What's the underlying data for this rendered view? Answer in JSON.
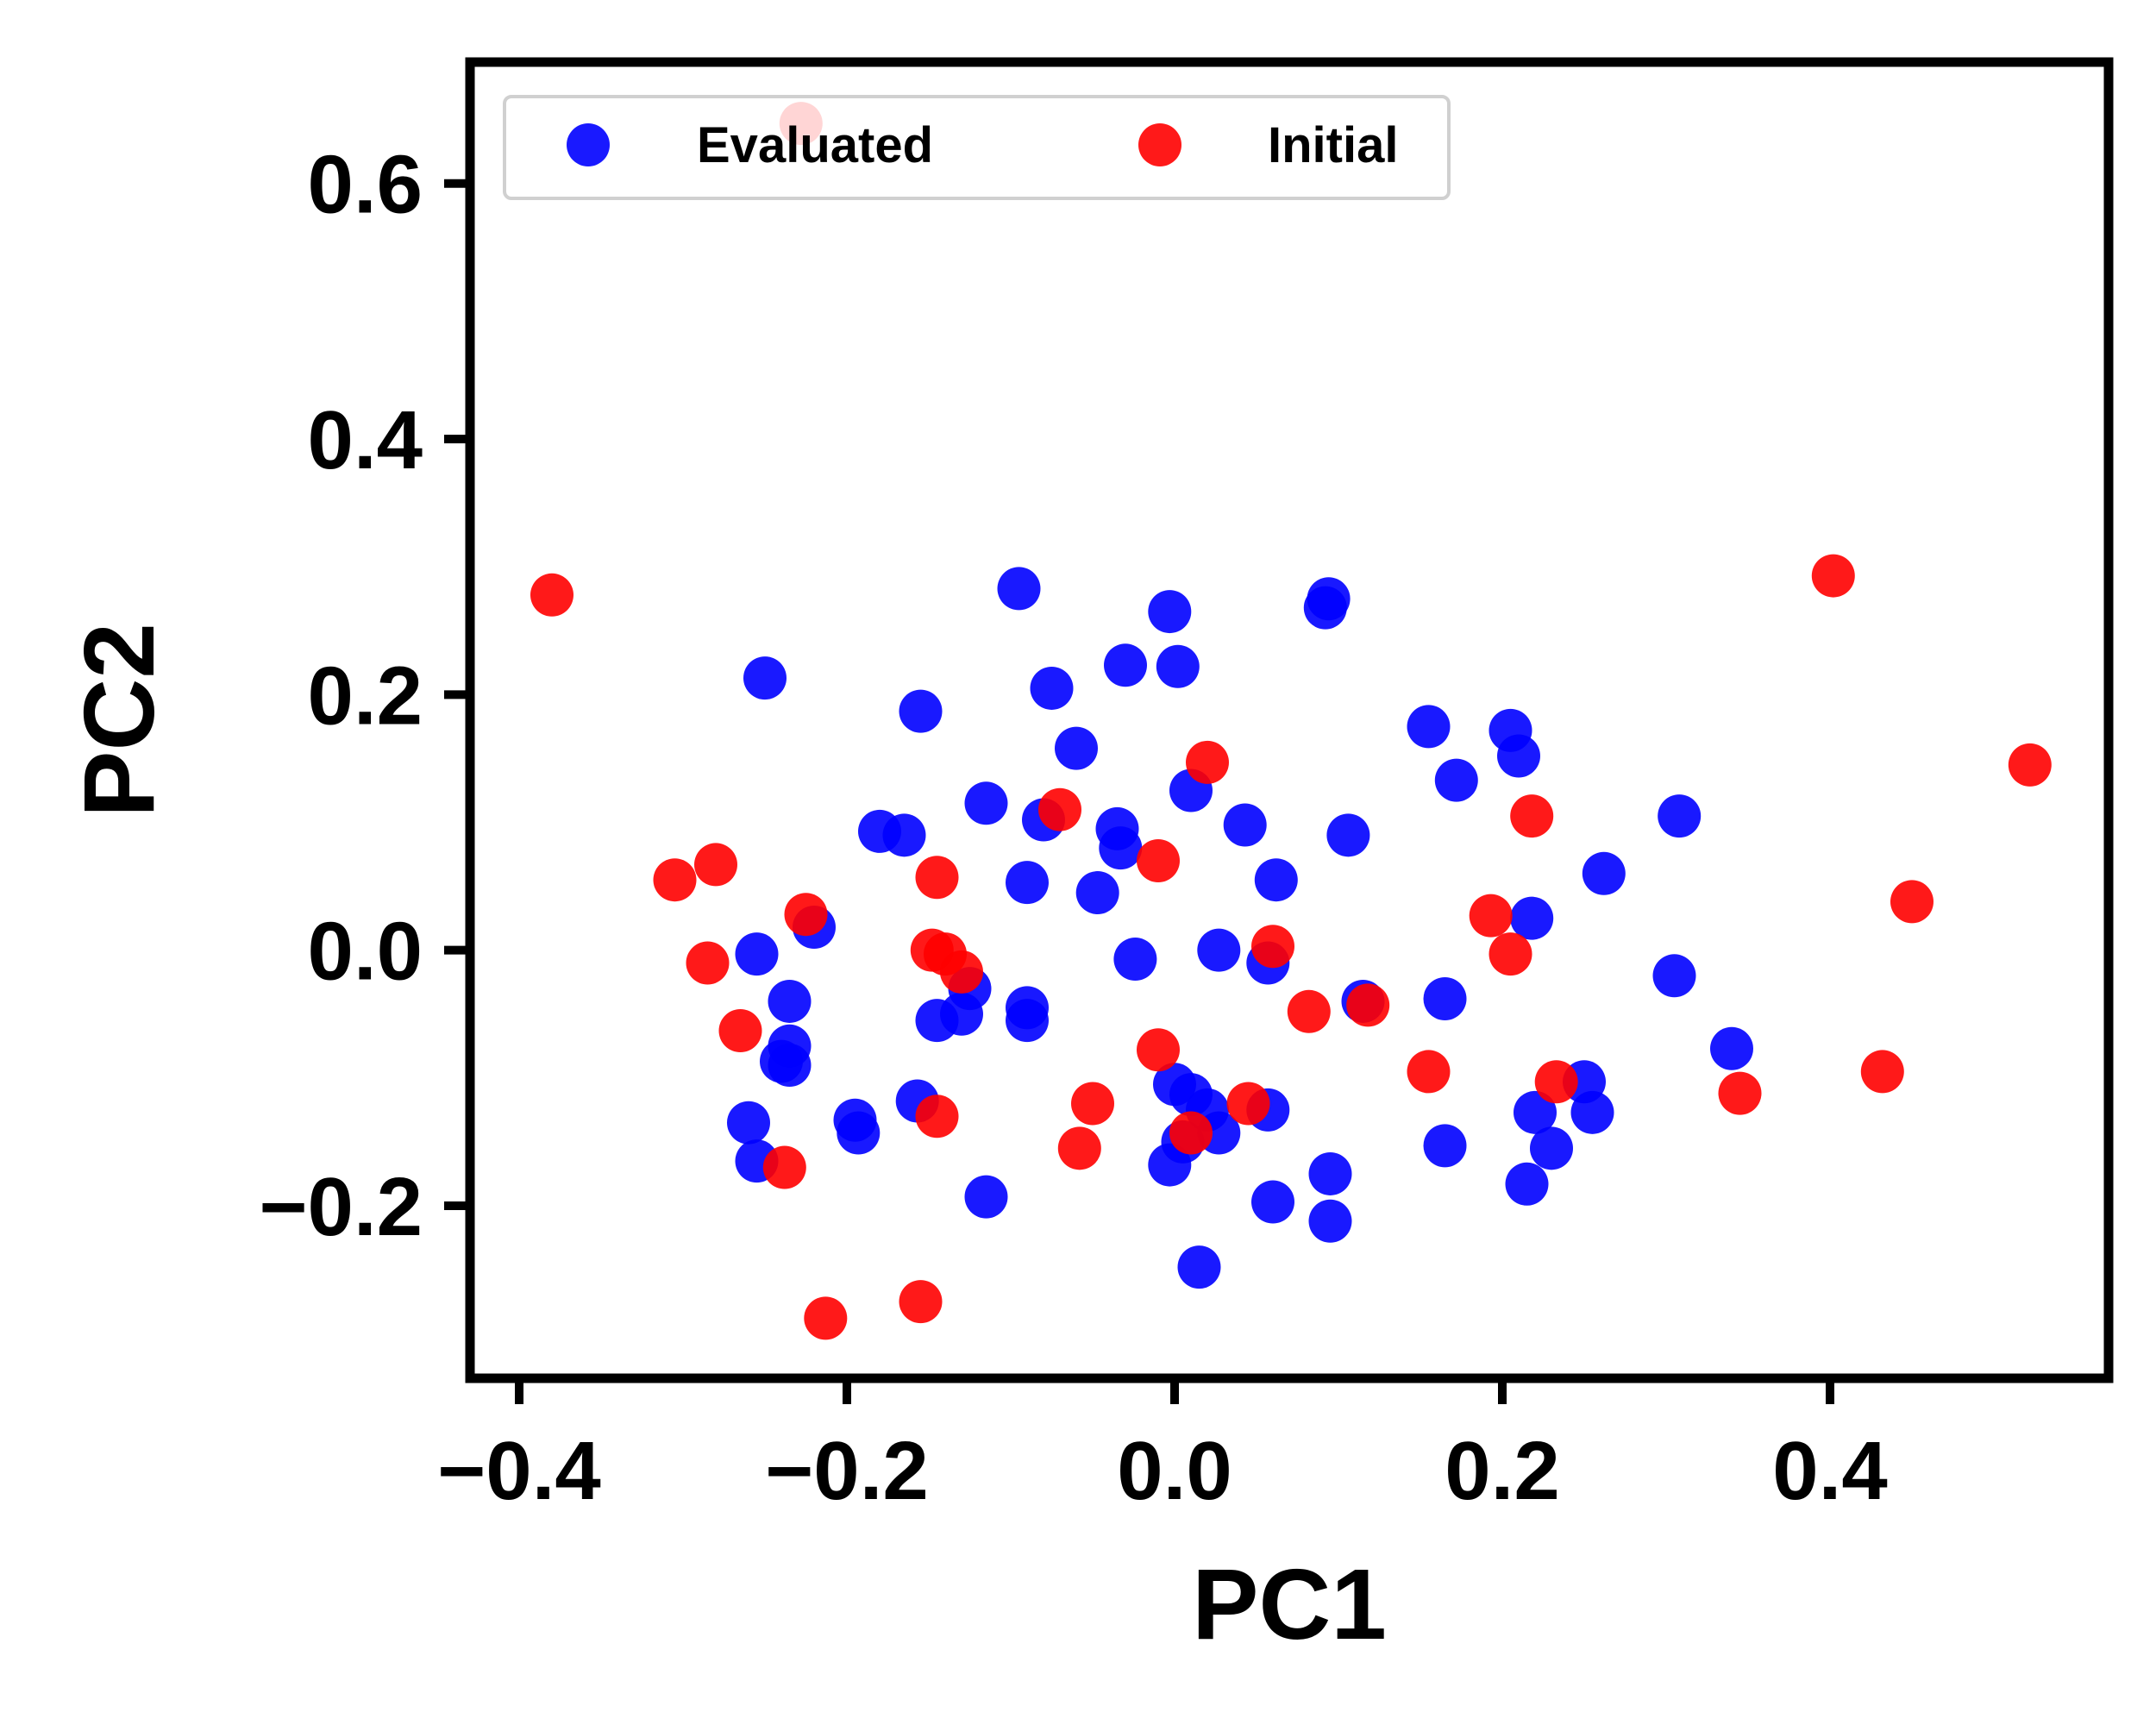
{
  "chart_data": {
    "type": "scatter",
    "title": "",
    "xlabel": "PC1",
    "ylabel": "PC2",
    "xlim": [
      -0.43,
      0.57
    ],
    "ylim": [
      -0.335,
      0.695
    ],
    "xticks": [
      -0.4,
      -0.2,
      0.0,
      0.2,
      0.4
    ],
    "yticks": [
      -0.2,
      0.0,
      0.2,
      0.4,
      0.6
    ],
    "xtick_labels": [
      "−0.4",
      "−0.2",
      "0.0",
      "0.2",
      "0.4"
    ],
    "ytick_labels": [
      "−0.2",
      "0.0",
      "0.2",
      "0.4",
      "0.6"
    ],
    "grid": false,
    "legend": {
      "placement": "top-left",
      "columns": 2
    },
    "series": [
      {
        "name": "Evaluated",
        "color": "#0000ff",
        "points": [
          [
            -0.25,
            0.213
          ],
          [
            -0.155,
            0.187
          ],
          [
            -0.095,
            0.283
          ],
          [
            -0.075,
            0.205
          ],
          [
            -0.06,
            0.158
          ],
          [
            -0.03,
            0.223
          ],
          [
            -0.003,
            0.265
          ],
          [
            0.002,
            0.222
          ],
          [
            0.092,
            0.268
          ],
          [
            0.094,
            0.275
          ],
          [
            0.155,
            0.175
          ],
          [
            0.172,
            0.133
          ],
          [
            0.205,
            0.172
          ],
          [
            0.21,
            0.152
          ],
          [
            0.308,
            0.105
          ],
          [
            -0.18,
            0.093
          ],
          [
            -0.165,
            0.09
          ],
          [
            -0.115,
            0.115
          ],
          [
            -0.08,
            0.102
          ],
          [
            -0.035,
            0.095
          ],
          [
            -0.033,
            0.08
          ],
          [
            0.01,
            0.125
          ],
          [
            0.043,
            0.098
          ],
          [
            0.062,
            0.055
          ],
          [
            0.106,
            0.09
          ],
          [
            0.262,
            0.06
          ],
          [
            -0.09,
            0.053
          ],
          [
            -0.047,
            0.045
          ],
          [
            -0.22,
            0.018
          ],
          [
            -0.255,
            -0.003
          ],
          [
            -0.024,
            -0.007
          ],
          [
            0.027,
            0.0
          ],
          [
            0.057,
            -0.01
          ],
          [
            0.218,
            0.025
          ],
          [
            0.305,
            -0.02
          ],
          [
            -0.235,
            -0.04
          ],
          [
            -0.125,
            -0.03
          ],
          [
            -0.13,
            -0.05
          ],
          [
            -0.145,
            -0.055
          ],
          [
            -0.09,
            -0.045
          ],
          [
            -0.09,
            -0.055
          ],
          [
            0.115,
            -0.04
          ],
          [
            0.165,
            -0.038
          ],
          [
            -0.235,
            -0.075
          ],
          [
            -0.24,
            -0.087
          ],
          [
            -0.235,
            -0.09
          ],
          [
            0.34,
            -0.077
          ],
          [
            -0.26,
            -0.135
          ],
          [
            -0.255,
            -0.165
          ],
          [
            -0.195,
            -0.133
          ],
          [
            -0.193,
            -0.143
          ],
          [
            -0.157,
            -0.118
          ],
          [
            -0.115,
            -0.193
          ],
          [
            0.0,
            -0.105
          ],
          [
            0.01,
            -0.113
          ],
          [
            0.02,
            -0.125
          ],
          [
            0.027,
            -0.143
          ],
          [
            0.005,
            -0.15
          ],
          [
            -0.003,
            -0.168
          ],
          [
            0.057,
            -0.125
          ],
          [
            0.06,
            -0.197
          ],
          [
            0.095,
            -0.175
          ],
          [
            0.095,
            -0.212
          ],
          [
            0.015,
            -0.248
          ],
          [
            0.165,
            -0.153
          ],
          [
            0.215,
            -0.183
          ],
          [
            0.23,
            -0.155
          ],
          [
            0.22,
            -0.127
          ],
          [
            0.25,
            -0.103
          ],
          [
            0.255,
            -0.127
          ]
        ]
      },
      {
        "name": "Initial",
        "color": "#ff0000",
        "points": [
          [
            -0.38,
            0.278
          ],
          [
            -0.228,
            0.647
          ],
          [
            -0.305,
            0.055
          ],
          [
            -0.28,
            0.067
          ],
          [
            -0.285,
            -0.01
          ],
          [
            -0.265,
            -0.063
          ],
          [
            -0.225,
            0.028
          ],
          [
            -0.238,
            -0.17
          ],
          [
            -0.213,
            -0.288
          ],
          [
            -0.155,
            -0.275
          ],
          [
            -0.145,
            0.057
          ],
          [
            -0.148,
            0.0
          ],
          [
            -0.14,
            -0.003
          ],
          [
            -0.13,
            -0.017
          ],
          [
            -0.145,
            -0.13
          ],
          [
            -0.07,
            0.11
          ],
          [
            -0.05,
            -0.12
          ],
          [
            -0.058,
            -0.155
          ],
          [
            -0.01,
            0.07
          ],
          [
            -0.01,
            -0.078
          ],
          [
            0.02,
            0.147
          ],
          [
            0.01,
            -0.143
          ],
          [
            0.045,
            -0.12
          ],
          [
            0.06,
            0.003
          ],
          [
            0.082,
            -0.048
          ],
          [
            0.118,
            -0.043
          ],
          [
            0.155,
            -0.095
          ],
          [
            0.193,
            0.027
          ],
          [
            0.205,
            -0.003
          ],
          [
            0.218,
            0.105
          ],
          [
            0.233,
            -0.103
          ],
          [
            0.345,
            -0.112
          ],
          [
            0.402,
            0.293
          ],
          [
            0.432,
            -0.095
          ],
          [
            0.45,
            0.038
          ],
          [
            0.522,
            0.145
          ]
        ]
      }
    ]
  }
}
